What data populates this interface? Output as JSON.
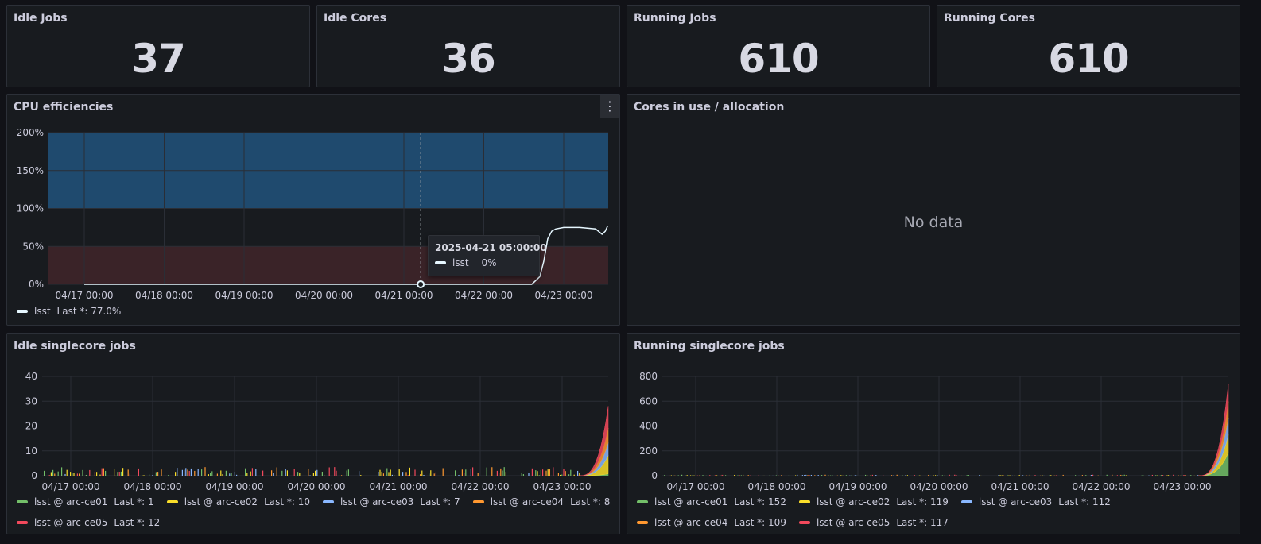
{
  "stats": [
    {
      "title": "Idle Jobs",
      "value": "37"
    },
    {
      "title": "Idle Cores",
      "value": "36"
    },
    {
      "title": "Running Jobs",
      "value": "610"
    },
    {
      "title": "Running Cores",
      "value": "610"
    }
  ],
  "cpu_panel": {
    "title": "CPU efficiencies",
    "menu_icon": "kebab-menu-icon",
    "legend": [
      {
        "name": "lsst",
        "last": "Last *: 77.0%",
        "color": "#e6f7ff"
      }
    ],
    "tooltip": {
      "time": "2025-04-21 05:00:00",
      "series": "lsst",
      "value": "0%"
    }
  },
  "cores_panel": {
    "title": "Cores in use / allocation",
    "message": "No data"
  },
  "idle_panel": {
    "title": "Idle singlecore jobs",
    "legend": [
      {
        "name": "lsst @ arc-ce01",
        "last": "Last *: 1",
        "color": "#73bf69"
      },
      {
        "name": "lsst @ arc-ce02",
        "last": "Last *: 10",
        "color": "#fade2a"
      },
      {
        "name": "lsst @ arc-ce03",
        "last": "Last *: 7",
        "color": "#8ab8ff"
      },
      {
        "name": "lsst @ arc-ce04",
        "last": "Last *: 8",
        "color": "#ff9830"
      },
      {
        "name": "lsst @ arc-ce05",
        "last": "Last *: 12",
        "color": "#f2495c"
      }
    ]
  },
  "running_panel": {
    "title": "Running singlecore jobs",
    "legend": [
      {
        "name": "lsst @ arc-ce01",
        "last": "Last *: 152",
        "color": "#73bf69"
      },
      {
        "name": "lsst @ arc-ce02",
        "last": "Last *: 119",
        "color": "#fade2a"
      },
      {
        "name": "lsst @ arc-ce03",
        "last": "Last *: 112",
        "color": "#8ab8ff"
      },
      {
        "name": "lsst @ arc-ce04",
        "last": "Last *: 109",
        "color": "#ff9830"
      },
      {
        "name": "lsst @ arc-ce05",
        "last": "Last *: 117",
        "color": "#f2495c"
      }
    ]
  },
  "chart_data": [
    {
      "type": "line",
      "title": "CPU efficiencies",
      "x_ticks": [
        "04/17 00:00",
        "04/18 00:00",
        "04/19 00:00",
        "04/20 00:00",
        "04/21 00:00",
        "04/22 00:00",
        "04/23 00:00"
      ],
      "y_ticks": [
        "0%",
        "50%",
        "100%",
        "150%",
        "200%"
      ],
      "ylim": [
        0,
        200
      ],
      "thresholds": [
        {
          "from": 0,
          "to": 50,
          "color": "#3a2328"
        },
        {
          "from": 100,
          "to": 200,
          "color": "#1f4a6e"
        }
      ],
      "series": [
        {
          "name": "lsst",
          "color": "#e6f7ff",
          "points": [
            [
              0,
              0
            ],
            [
              3,
              0
            ],
            [
              5.6,
              0
            ],
            [
              5.7,
              10
            ],
            [
              5.75,
              30
            ],
            [
              5.8,
              60
            ],
            [
              5.85,
              70
            ],
            [
              5.9,
              73
            ],
            [
              6.0,
              75
            ],
            [
              6.2,
              75
            ],
            [
              6.4,
              73
            ],
            [
              6.48,
              66
            ],
            [
              6.52,
              70
            ],
            [
              6.55,
              77
            ]
          ]
        }
      ]
    },
    {
      "type": "area",
      "title": "Idle singlecore jobs",
      "x_ticks": [
        "04/17 00:00",
        "04/18 00:00",
        "04/19 00:00",
        "04/20 00:00",
        "04/21 00:00",
        "04/22 00:00",
        "04/23 00:00"
      ],
      "y_ticks": [
        "0",
        "10",
        "20",
        "30",
        "40"
      ],
      "ylim": [
        0,
        40
      ],
      "stacked": true,
      "series_last": {
        "lsst @ arc-ce01": 1,
        "lsst @ arc-ce02": 10,
        "lsst @ arc-ce03": 7,
        "lsst @ arc-ce04": 8,
        "lsst @ arc-ce05": 12
      },
      "peak_total": 28
    },
    {
      "type": "area",
      "title": "Running singlecore jobs",
      "x_ticks": [
        "04/17 00:00",
        "04/18 00:00",
        "04/19 00:00",
        "04/20 00:00",
        "04/21 00:00",
        "04/22 00:00",
        "04/23 00:00"
      ],
      "y_ticks": [
        "0",
        "200",
        "400",
        "600",
        "800"
      ],
      "ylim": [
        0,
        800
      ],
      "stacked": true,
      "series_last": {
        "lsst @ arc-ce01": 152,
        "lsst @ arc-ce02": 119,
        "lsst @ arc-ce03": 112,
        "lsst @ arc-ce04": 109,
        "lsst @ arc-ce05": 117
      },
      "peak_total": 740
    }
  ]
}
